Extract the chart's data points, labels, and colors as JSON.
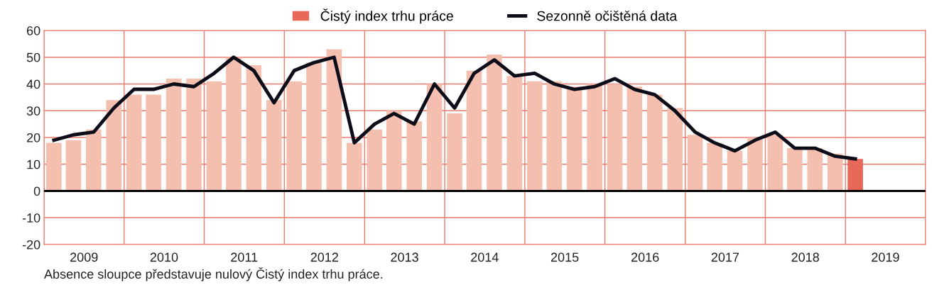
{
  "chart_data": {
    "type": "bar",
    "x": [
      "2009-02-15",
      "2009-05-15",
      "2009-08-15",
      "2009-11-15",
      "2010-02-15",
      "2010-05-15",
      "2010-08-15",
      "2010-11-15",
      "2011-02-15",
      "2011-05-15",
      "2011-08-15",
      "2011-11-15",
      "2012-02-15",
      "2012-05-15",
      "2012-08-15",
      "2012-11-15",
      "2013-02-15",
      "2013-05-15",
      "2013-08-15",
      "2013-11-15",
      "2014-02-15",
      "2014-05-15",
      "2014-08-15",
      "2014-11-15",
      "2015-02-15",
      "2015-05-15",
      "2015-08-15",
      "2015-11-15",
      "2016-02-15",
      "2016-05-15",
      "2016-08-15",
      "2016-11-15",
      "2017-02-15",
      "2017-05-15",
      "2017-08-15",
      "2017-11-15",
      "2018-02-15",
      "2018-05-15",
      "2018-08-15",
      "2018-11-15",
      "2019-02-15"
    ],
    "series": [
      {
        "name": "Čistý index trhu práce",
        "color": "#e8695a",
        "colors": [
          "#f5bfb0",
          "#f5bfb0",
          "#f5bfb0",
          "#f5bfb0",
          "#f5bfb0",
          "#f5bfb0",
          "#f5bfb0",
          "#f5bfb0",
          "#f5bfb0",
          "#f5bfb0",
          "#f5bfb0",
          "#f5bfb0",
          "#f5bfb0",
          "#f5bfb0",
          "#f5bfb0",
          "#f5bfb0",
          "#f5bfb0",
          "#f5bfb0",
          "#f5bfb0",
          "#f5bfb0",
          "#f5bfb0",
          "#f5bfb0",
          "#f5bfb0",
          "#f5bfb0",
          "#f5bfb0",
          "#f5bfb0",
          "#f5bfb0",
          "#f5bfb0",
          "#f5bfb0",
          "#f5bfb0",
          "#f5bfb0",
          "#f5bfb0",
          "#f5bfb0",
          "#f5bfb0",
          "#f5bfb0",
          "#f5bfb0",
          "#f5bfb0",
          "#f5bfb0",
          "#f5bfb0",
          "#f5bfb0",
          "#e8695a"
        ],
        "values": [
          18,
          19,
          23,
          34,
          36,
          36,
          42,
          42,
          41,
          50,
          47,
          34,
          41,
          48,
          53,
          18,
          23,
          30,
          26,
          40,
          29,
          45,
          51,
          43,
          41,
          41,
          39,
          40,
          40,
          39,
          36,
          31,
          21,
          18,
          15,
          20,
          21,
          16,
          16,
          14,
          12
        ]
      },
      {
        "name": "Sezonně očištěná data",
        "type": "line",
        "color": "#0d0d1a",
        "values": [
          19,
          21,
          22,
          31,
          38,
          38,
          40,
          39,
          44,
          50,
          45,
          33,
          45,
          48,
          50,
          18,
          25,
          29,
          25,
          40,
          31,
          44,
          49,
          43,
          44,
          40,
          38,
          39,
          42,
          38,
          36,
          30,
          22,
          18,
          15,
          19,
          22,
          16,
          16,
          13,
          12
        ]
      }
    ],
    "xlim": [
      "2009-01-01",
      "2020-01-01"
    ],
    "xticks": [
      {
        "value": "2009-01-01",
        "label": null
      },
      {
        "value": "2009-07-02",
        "label": "2009"
      },
      {
        "value": "2010-01-01",
        "label": null
      },
      {
        "value": "2010-07-02",
        "label": "2010"
      },
      {
        "value": "2011-01-01",
        "label": null
      },
      {
        "value": "2011-07-02",
        "label": "2011"
      },
      {
        "value": "2012-01-01",
        "label": null
      },
      {
        "value": "2012-07-02",
        "label": "2012"
      },
      {
        "value": "2013-01-01",
        "label": null
      },
      {
        "value": "2013-07-02",
        "label": "2013"
      },
      {
        "value": "2014-01-01",
        "label": null
      },
      {
        "value": "2014-07-02",
        "label": "2014"
      },
      {
        "value": "2015-01-01",
        "label": null
      },
      {
        "value": "2015-07-02",
        "label": "2015"
      },
      {
        "value": "2016-01-01",
        "label": null
      },
      {
        "value": "2016-07-02",
        "label": "2016"
      },
      {
        "value": "2017-01-01",
        "label": null
      },
      {
        "value": "2017-07-02",
        "label": "2017"
      },
      {
        "value": "2018-01-01",
        "label": null
      },
      {
        "value": "2018-07-02",
        "label": "2018"
      },
      {
        "value": "2019-01-01",
        "label": null
      },
      {
        "value": "2019-07-02",
        "label": "2019"
      },
      {
        "value": "2020-01-01",
        "label": null
      }
    ],
    "ylim": [
      -20,
      60
    ],
    "yticks": [
      -20,
      -10,
      0,
      10,
      20,
      30,
      40,
      50,
      60
    ],
    "ref_lines": [
      {
        "axis": "y",
        "value": 0,
        "color": "#000000"
      }
    ],
    "grid": true,
    "legend": "top",
    "annotations": [
      "Absence sloupce představuje nulový Čistý index trhu práce."
    ]
  }
}
